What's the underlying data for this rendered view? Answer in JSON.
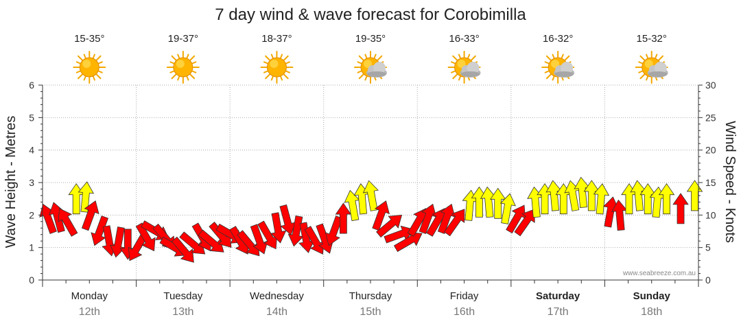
{
  "chart_data": {
    "type": "scatter",
    "title": "7 day wind & wave forecast for Corobimilla",
    "ylabel_left": "Wave Height - Metres",
    "ylabel_right": "Wind Speed - Knots",
    "ylim_left": [
      0,
      6
    ],
    "ylim_right": [
      0,
      30
    ],
    "yticks_left": [
      "0",
      "1",
      "2",
      "3",
      "4",
      "5",
      "6"
    ],
    "yticks_right": [
      "0",
      "5",
      "10",
      "15",
      "20",
      "25",
      "30"
    ],
    "grid": "dotted vertical day separators, dotted horizontal lines",
    "watermark": "www.seabreeze.com.au",
    "colors": {
      "strong": "#ff0000",
      "moderate": "#ffff00",
      "outline": "#333333",
      "grid": "#aaaaaa"
    },
    "days": [
      {
        "name": "Monday",
        "date": "12th",
        "temp": "15-35°",
        "icon": "sun-icon",
        "bold": false
      },
      {
        "name": "Tuesday",
        "date": "13th",
        "temp": "19-37°",
        "icon": "sun-icon",
        "bold": false
      },
      {
        "name": "Wednesday",
        "date": "14th",
        "temp": "18-37°",
        "icon": "sun-icon",
        "bold": false
      },
      {
        "name": "Thursday",
        "date": "15th",
        "temp": "19-35°",
        "icon": "sun-cloud-icon",
        "bold": false
      },
      {
        "name": "Friday",
        "date": "16th",
        "temp": "16-33°",
        "icon": "sun-cloud-icon",
        "bold": false
      },
      {
        "name": "Saturday",
        "date": "17th",
        "temp": "16-32°",
        "icon": "sun-cloud-icon",
        "bold": true
      },
      {
        "name": "Sunday",
        "date": "18th",
        "temp": "15-32°",
        "icon": "sun-cloud-icon",
        "bold": true
      }
    ],
    "wind_arrows": [
      {
        "t": 0.0,
        "knots": 9.5,
        "dir": 160,
        "c": "red"
      },
      {
        "t": 0.1,
        "knots": 9.7,
        "dir": 165,
        "c": "red"
      },
      {
        "t": 0.2,
        "knots": 9.0,
        "dir": 150,
        "c": "red"
      },
      {
        "t": 0.3,
        "knots": 12.5,
        "dir": 180,
        "c": "yellow"
      },
      {
        "t": 0.4,
        "knots": 12.8,
        "dir": 185,
        "c": "yellow"
      },
      {
        "t": 0.45,
        "knots": 10.0,
        "dir": 200,
        "c": "red"
      },
      {
        "t": 0.55,
        "knots": 7.5,
        "dir": 20,
        "c": "red"
      },
      {
        "t": 0.65,
        "knots": 6.0,
        "dir": 350,
        "c": "red"
      },
      {
        "t": 0.75,
        "knots": 5.8,
        "dir": 10,
        "c": "red"
      },
      {
        "t": 0.85,
        "knots": 5.5,
        "dir": 0,
        "c": "red"
      },
      {
        "t": 0.95,
        "knots": 5.0,
        "dir": 30,
        "c": "red"
      },
      {
        "t": 1.05,
        "knots": 6.5,
        "dir": 330,
        "c": "red"
      },
      {
        "t": 1.15,
        "knots": 7.5,
        "dir": 300,
        "c": "red"
      },
      {
        "t": 1.25,
        "knots": 6.5,
        "dir": 320,
        "c": "red"
      },
      {
        "t": 1.35,
        "knots": 5.0,
        "dir": 300,
        "c": "red"
      },
      {
        "t": 1.45,
        "knots": 4.5,
        "dir": 320,
        "c": "red"
      },
      {
        "t": 1.55,
        "knots": 5.5,
        "dir": 310,
        "c": "red"
      },
      {
        "t": 1.65,
        "knots": 6.5,
        "dir": 330,
        "c": "red"
      },
      {
        "t": 1.75,
        "knots": 5.8,
        "dir": 310,
        "c": "red"
      },
      {
        "t": 1.85,
        "knots": 6.8,
        "dir": 320,
        "c": "red"
      },
      {
        "t": 1.95,
        "knots": 7.0,
        "dir": 300,
        "c": "red"
      },
      {
        "t": 2.05,
        "knots": 6.0,
        "dir": 330,
        "c": "red"
      },
      {
        "t": 2.15,
        "knots": 5.5,
        "dir": 320,
        "c": "red"
      },
      {
        "t": 2.25,
        "knots": 6.2,
        "dir": 340,
        "c": "red"
      },
      {
        "t": 2.35,
        "knots": 6.8,
        "dir": 330,
        "c": "red"
      },
      {
        "t": 2.45,
        "knots": 8.0,
        "dir": 350,
        "c": "red"
      },
      {
        "t": 2.55,
        "knots": 9.2,
        "dir": 345,
        "c": "red"
      },
      {
        "t": 2.65,
        "knots": 7.5,
        "dir": 10,
        "c": "red"
      },
      {
        "t": 2.75,
        "knots": 6.5,
        "dir": 350,
        "c": "red"
      },
      {
        "t": 2.85,
        "knots": 6.0,
        "dir": 330,
        "c": "red"
      },
      {
        "t": 2.95,
        "knots": 6.3,
        "dir": 340,
        "c": "red"
      },
      {
        "t": 3.05,
        "knots": 7.5,
        "dir": 20,
        "c": "red"
      },
      {
        "t": 3.15,
        "knots": 9.5,
        "dir": 180,
        "c": "red"
      },
      {
        "t": 3.25,
        "knots": 11.5,
        "dir": 170,
        "c": "yellow"
      },
      {
        "t": 3.35,
        "knots": 12.5,
        "dir": 175,
        "c": "yellow"
      },
      {
        "t": 3.45,
        "knots": 13.0,
        "dir": 170,
        "c": "yellow"
      },
      {
        "t": 3.55,
        "knots": 10.0,
        "dir": 200,
        "c": "red"
      },
      {
        "t": 3.65,
        "knots": 8.5,
        "dir": 230,
        "c": "red"
      },
      {
        "t": 3.75,
        "knots": 7.0,
        "dir": 250,
        "c": "red"
      },
      {
        "t": 3.85,
        "knots": 6.0,
        "dir": 240,
        "c": "red"
      },
      {
        "t": 3.95,
        "knots": 9.0,
        "dir": 210,
        "c": "red"
      },
      {
        "t": 4.05,
        "knots": 9.5,
        "dir": 200,
        "c": "red"
      },
      {
        "t": 4.15,
        "knots": 9.0,
        "dir": 210,
        "c": "red"
      },
      {
        "t": 4.25,
        "knots": 9.5,
        "dir": 200,
        "c": "red"
      },
      {
        "t": 4.35,
        "knots": 9.0,
        "dir": 215,
        "c": "red"
      },
      {
        "t": 4.5,
        "knots": 11.5,
        "dir": 185,
        "c": "yellow"
      },
      {
        "t": 4.6,
        "knots": 12.0,
        "dir": 180,
        "c": "yellow"
      },
      {
        "t": 4.7,
        "knots": 12.0,
        "dir": 175,
        "c": "yellow"
      },
      {
        "t": 4.8,
        "knots": 11.8,
        "dir": 180,
        "c": "yellow"
      },
      {
        "t": 4.9,
        "knots": 11.0,
        "dir": 190,
        "c": "yellow"
      },
      {
        "t": 5.0,
        "knots": 9.5,
        "dir": 210,
        "c": "red"
      },
      {
        "t": 5.1,
        "knots": 9.0,
        "dir": 215,
        "c": "red"
      },
      {
        "t": 5.2,
        "knots": 12.0,
        "dir": 175,
        "c": "yellow"
      },
      {
        "t": 5.3,
        "knots": 12.5,
        "dir": 180,
        "c": "yellow"
      },
      {
        "t": 5.4,
        "knots": 13.0,
        "dir": 175,
        "c": "yellow"
      },
      {
        "t": 5.5,
        "knots": 12.5,
        "dir": 180,
        "c": "yellow"
      },
      {
        "t": 5.6,
        "knots": 13.0,
        "dir": 170,
        "c": "yellow"
      },
      {
        "t": 5.7,
        "knots": 13.5,
        "dir": 175,
        "c": "yellow"
      },
      {
        "t": 5.8,
        "knots": 13.0,
        "dir": 180,
        "c": "yellow"
      },
      {
        "t": 5.9,
        "knots": 12.5,
        "dir": 185,
        "c": "yellow"
      },
      {
        "t": 6.0,
        "knots": 10.5,
        "dir": 190,
        "c": "red"
      },
      {
        "t": 6.1,
        "knots": 10.0,
        "dir": 175,
        "c": "red"
      },
      {
        "t": 6.2,
        "knots": 12.5,
        "dir": 180,
        "c": "yellow"
      },
      {
        "t": 6.3,
        "knots": 13.0,
        "dir": 175,
        "c": "yellow"
      },
      {
        "t": 6.4,
        "knots": 12.5,
        "dir": 180,
        "c": "yellow"
      },
      {
        "t": 6.5,
        "knots": 12.0,
        "dir": 185,
        "c": "yellow"
      },
      {
        "t": 6.6,
        "knots": 12.5,
        "dir": 180,
        "c": "yellow"
      },
      {
        "t": 6.75,
        "knots": 11.0,
        "dir": 180,
        "c": "red"
      },
      {
        "t": 6.9,
        "knots": 13.0,
        "dir": 180,
        "c": "yellow"
      }
    ]
  }
}
